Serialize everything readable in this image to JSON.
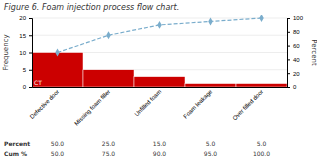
{
  "chart_data": {
    "type": "bar",
    "title": "Figure 6. Foam injection process flow chart.",
    "categories": [
      "Defective door",
      "Missing foam filler",
      "Unfilled foam",
      "Foam leakage",
      "Over filled door"
    ],
    "series": [
      {
        "type": "bar",
        "color": "#cc0000",
        "values": [
          10,
          5,
          3,
          1,
          1
        ]
      },
      {
        "type": "line",
        "axis": "y2",
        "color": "#7aadcc",
        "marker": "diamond",
        "line_style": "dashed",
        "values": [
          50.0,
          75.0,
          90.0,
          95.0,
          100.0
        ]
      }
    ],
    "ylabel": "Frequency",
    "y2label": "Percent",
    "ylim": [
      0,
      20
    ],
    "yticks": [
      0,
      5,
      10,
      15,
      20
    ],
    "y2lim": [
      0,
      100
    ],
    "y2ticks": [
      0,
      20,
      40,
      60,
      80,
      100
    ],
    "grid": true,
    "annotations": [
      "CT"
    ],
    "table": [
      {
        "label": "Percent",
        "values": [
          50.0,
          25.0,
          15.0,
          5.0,
          5.0
        ],
        "value_labels": [
          "50.0",
          "25.0",
          "15.0",
          "5.0",
          "5.0"
        ]
      },
      {
        "label": "Cum %",
        "values": [
          50.0,
          75.0,
          90.0,
          95.0,
          100.0
        ],
        "value_labels": [
          "50.0",
          "75.0",
          "90.0",
          "95.0",
          "100.0"
        ]
      }
    ]
  }
}
